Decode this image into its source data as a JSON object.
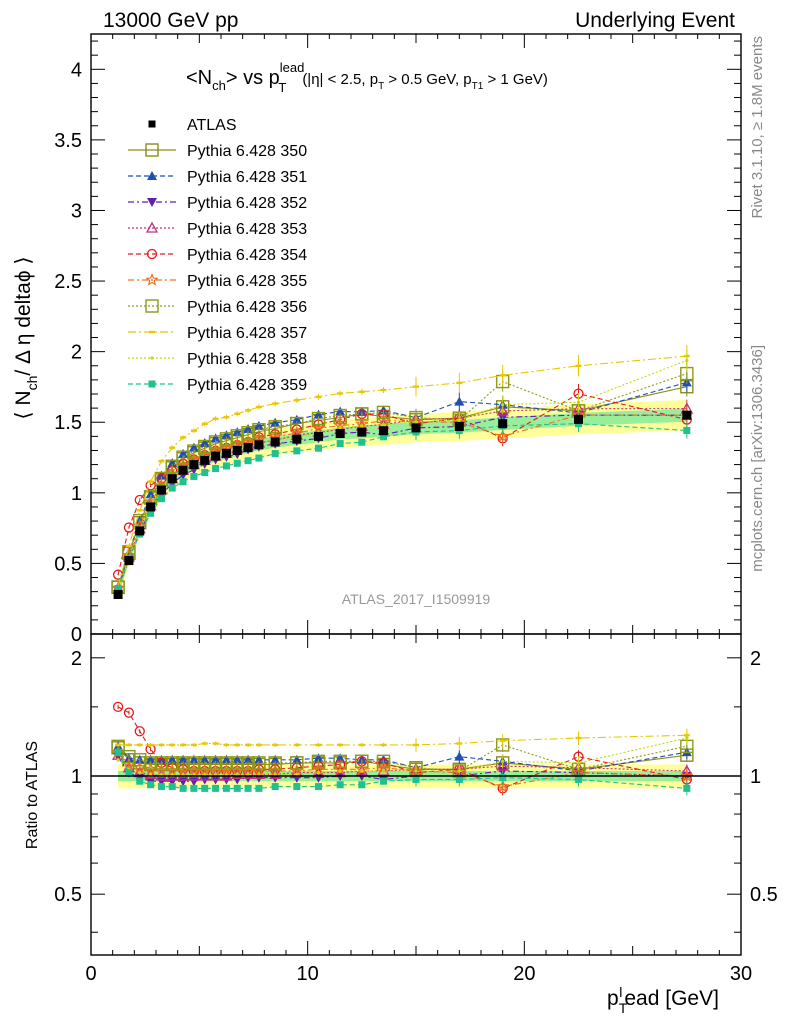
{
  "header": {
    "left": "13000 GeV pp",
    "right": "Underlying Event"
  },
  "side": {
    "rivet": "Rivet 3.1.10, ≥ 1.8M events",
    "mcplots": "mcplots.cern.ch [arXiv:1306.3436]"
  },
  "main_plot": {
    "title": "<N",
    "title_parts": {
      "a": "<N",
      "b": "ch",
      "c": "> vs p",
      "d": "lead",
      "e": "T",
      "f": "(|η| < 2.5, p",
      "g": "T",
      "h": " > 0.5 GeV, p",
      "i": "T1",
      "j": " > 1 GeV)"
    },
    "ylabel_parts": {
      "a": "⟨ N",
      "b": "ch",
      "c": "/ Δ η deltaϕ ⟩"
    },
    "analysis_id": "ATLAS_2017_I1509919"
  },
  "ratio_plot": {
    "ylabel": "Ratio to ATLAS"
  },
  "x_axis": {
    "label_parts": {
      "a": "p",
      "b": "T",
      "c": "l",
      "d": "ead [GeV]"
    }
  },
  "chart_data": {
    "type": "scatter",
    "x_range": [
      0,
      30
    ],
    "main_y_range": [
      0,
      4.25
    ],
    "ratio_y_range": [
      0.35,
      2.3
    ],
    "main_y_ticks": [
      0,
      0.5,
      1,
      1.5,
      2,
      2.5,
      3,
      3.5,
      4
    ],
    "ratio_y_ticks": [
      0.5,
      1,
      2
    ],
    "x_ticks": [
      0,
      10,
      20,
      30
    ],
    "x": [
      1.25,
      1.75,
      2.25,
      2.75,
      3.25,
      3.75,
      4.25,
      4.75,
      5.25,
      5.75,
      6.25,
      6.75,
      7.25,
      7.75,
      8.5,
      9.5,
      10.5,
      11.5,
      12.5,
      13.5,
      15.0,
      17.0,
      19.0,
      22.5,
      27.5
    ],
    "data": {
      "name": "ATLAS",
      "color": "#000000",
      "values": [
        0.28,
        0.52,
        0.73,
        0.9,
        1.02,
        1.1,
        1.16,
        1.2,
        1.23,
        1.26,
        1.28,
        1.3,
        1.32,
        1.34,
        1.36,
        1.38,
        1.4,
        1.42,
        1.43,
        1.44,
        1.46,
        1.47,
        1.49,
        1.52,
        1.55
      ],
      "band_inner": 0.03,
      "band_outer": 0.07
    },
    "series": [
      {
        "name": "Pythia 6.428 350",
        "color": "#8c8c1a",
        "marker": "square-open",
        "dash": "solid",
        "ratio": [
          1.18,
          1.1,
          1.08,
          1.07,
          1.07,
          1.07,
          1.07,
          1.07,
          1.07,
          1.07,
          1.07,
          1.07,
          1.07,
          1.07,
          1.07,
          1.08,
          1.08,
          1.08,
          1.09,
          1.07,
          1.04,
          1.04,
          1.08,
          1.04,
          1.13
        ]
      },
      {
        "name": "Pythia 6.428 351",
        "color": "#1f4fb4",
        "marker": "triangle-up",
        "dash": "5,3",
        "ratio": [
          1.19,
          1.11,
          1.1,
          1.1,
          1.1,
          1.1,
          1.1,
          1.1,
          1.1,
          1.1,
          1.1,
          1.1,
          1.1,
          1.1,
          1.1,
          1.1,
          1.11,
          1.11,
          1.1,
          1.1,
          1.05,
          1.12,
          1.09,
          1.03,
          1.15
        ]
      },
      {
        "name": "Pythia 6.428 352",
        "color": "#5a1fb4",
        "marker": "triangle-down",
        "dash": "6,3,2,3",
        "ratio": [
          1.12,
          1.02,
          0.99,
          0.97,
          0.97,
          0.97,
          0.97,
          0.97,
          0.98,
          0.98,
          0.98,
          0.98,
          0.99,
          0.99,
          0.99,
          0.99,
          0.99,
          1.0,
          1.0,
          0.98,
          1.0,
          1.0,
          1.03,
          1.02,
          1.0
        ]
      },
      {
        "name": "Pythia 6.428 353",
        "color": "#c4307a",
        "marker": "triangle-up-open",
        "dash": "2,2",
        "ratio": [
          1.13,
          1.05,
          1.02,
          1.01,
          1.0,
          1.0,
          1.0,
          1.0,
          1.0,
          1.0,
          1.0,
          1.01,
          1.01,
          1.01,
          1.01,
          1.02,
          1.02,
          1.02,
          1.03,
          1.03,
          1.04,
          1.04,
          1.06,
          1.05,
          1.03
        ]
      },
      {
        "name": "Pythia 6.428 354",
        "color": "#e41a1c",
        "marker": "circle-open",
        "dash": "5,3",
        "ratio": [
          1.5,
          1.45,
          1.3,
          1.17,
          1.08,
          1.05,
          1.04,
          1.03,
          1.03,
          1.03,
          1.03,
          1.03,
          1.03,
          1.04,
          1.04,
          1.05,
          1.06,
          1.07,
          1.09,
          1.08,
          1.02,
          1.04,
          0.93,
          1.12,
          0.98
        ]
      },
      {
        "name": "Pythia 6.428 355",
        "color": "#f07020",
        "marker": "star-open",
        "dash": "6,3,2,3",
        "ratio": [
          1.15,
          1.07,
          1.05,
          1.04,
          1.03,
          1.03,
          1.03,
          1.03,
          1.03,
          1.03,
          1.03,
          1.03,
          1.03,
          1.03,
          1.03,
          1.03,
          1.04,
          1.04,
          1.04,
          1.05,
          1.03,
          1.02,
          0.94,
          1.02,
          1.0
        ]
      },
      {
        "name": "Pythia 6.428 356",
        "color": "#8c9a1a",
        "marker": "square-open",
        "dash": "2,2",
        "ratio": [
          1.19,
          1.12,
          1.1,
          1.08,
          1.08,
          1.08,
          1.08,
          1.08,
          1.08,
          1.08,
          1.08,
          1.08,
          1.08,
          1.08,
          1.08,
          1.08,
          1.09,
          1.09,
          1.09,
          1.09,
          1.05,
          1.03,
          1.2,
          1.04,
          1.19
        ]
      },
      {
        "name": "Pythia 6.428 357",
        "color": "#e8c800",
        "marker": "dash",
        "dash": "8,3,2,3",
        "ratio": [
          1.2,
          1.2,
          1.2,
          1.2,
          1.2,
          1.2,
          1.2,
          1.2,
          1.21,
          1.21,
          1.2,
          1.2,
          1.2,
          1.2,
          1.2,
          1.2,
          1.2,
          1.2,
          1.2,
          1.2,
          1.2,
          1.21,
          1.23,
          1.25,
          1.27
        ]
      },
      {
        "name": "Pythia 6.428 358",
        "color": "#c8d800",
        "marker": "dot",
        "dash": "2,2",
        "ratio": [
          1.1,
          1.04,
          1.02,
          1.01,
          1.01,
          1.01,
          1.01,
          1.01,
          1.01,
          1.01,
          1.01,
          1.01,
          1.01,
          1.01,
          1.01,
          1.01,
          1.02,
          1.03,
          1.03,
          1.03,
          1.03,
          1.03,
          1.09,
          1.08,
          1.25
        ]
      },
      {
        "name": "Pythia 6.428 359",
        "color": "#20c090",
        "marker": "square",
        "dash": "5,3",
        "ratio": [
          1.15,
          1.02,
          0.97,
          0.95,
          0.94,
          0.94,
          0.93,
          0.93,
          0.93,
          0.93,
          0.93,
          0.93,
          0.93,
          0.93,
          0.94,
          0.94,
          0.94,
          0.95,
          0.95,
          0.97,
          0.98,
          0.98,
          0.99,
          0.98,
          0.93
        ]
      }
    ]
  }
}
